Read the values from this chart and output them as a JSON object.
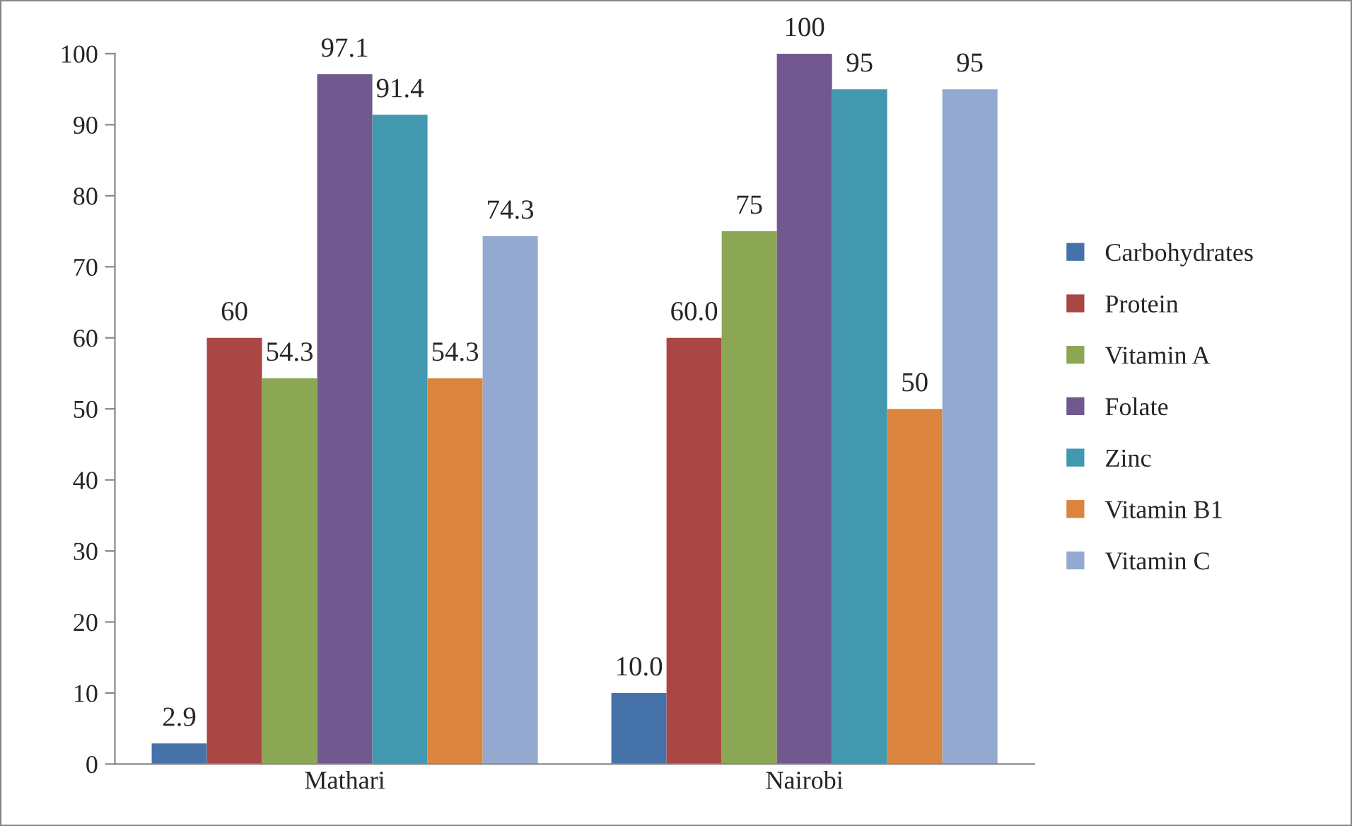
{
  "chart_data": {
    "type": "bar",
    "categories": [
      "Mathari",
      "Nairobi"
    ],
    "series": [
      {
        "name": "Carbohydrates",
        "color": "#4672aa",
        "values": [
          2.9,
          10.0
        ],
        "value_labels": [
          "2.9",
          "10.0"
        ]
      },
      {
        "name": "Protein",
        "color": "#aa4644",
        "values": [
          60,
          60.0
        ],
        "value_labels": [
          "60",
          "60.0"
        ]
      },
      {
        "name": "Vitamin A",
        "color": "#8ba753",
        "values": [
          54.3,
          75
        ],
        "value_labels": [
          "54.3",
          "75"
        ]
      },
      {
        "name": "Folate",
        "color": "#71588f",
        "values": [
          97.1,
          100
        ],
        "value_labels": [
          "97.1",
          "100"
        ]
      },
      {
        "name": "Zinc",
        "color": "#4298ae",
        "values": [
          91.4,
          95
        ],
        "value_labels": [
          "91.4",
          "95"
        ]
      },
      {
        "name": "Vitamin B1",
        "color": "#db843d",
        "values": [
          54.3,
          50
        ],
        "value_labels": [
          "54.3",
          "50"
        ]
      },
      {
        "name": "Vitamin C",
        "color": "#93a9cf",
        "values": [
          74.3,
          95
        ],
        "value_labels": [
          "74.3",
          "95"
        ]
      }
    ],
    "ylim": [
      0,
      100
    ],
    "yticks": [
      0,
      10,
      20,
      30,
      40,
      50,
      60,
      70,
      80,
      90,
      100
    ],
    "grid": false,
    "legend": "right"
  }
}
